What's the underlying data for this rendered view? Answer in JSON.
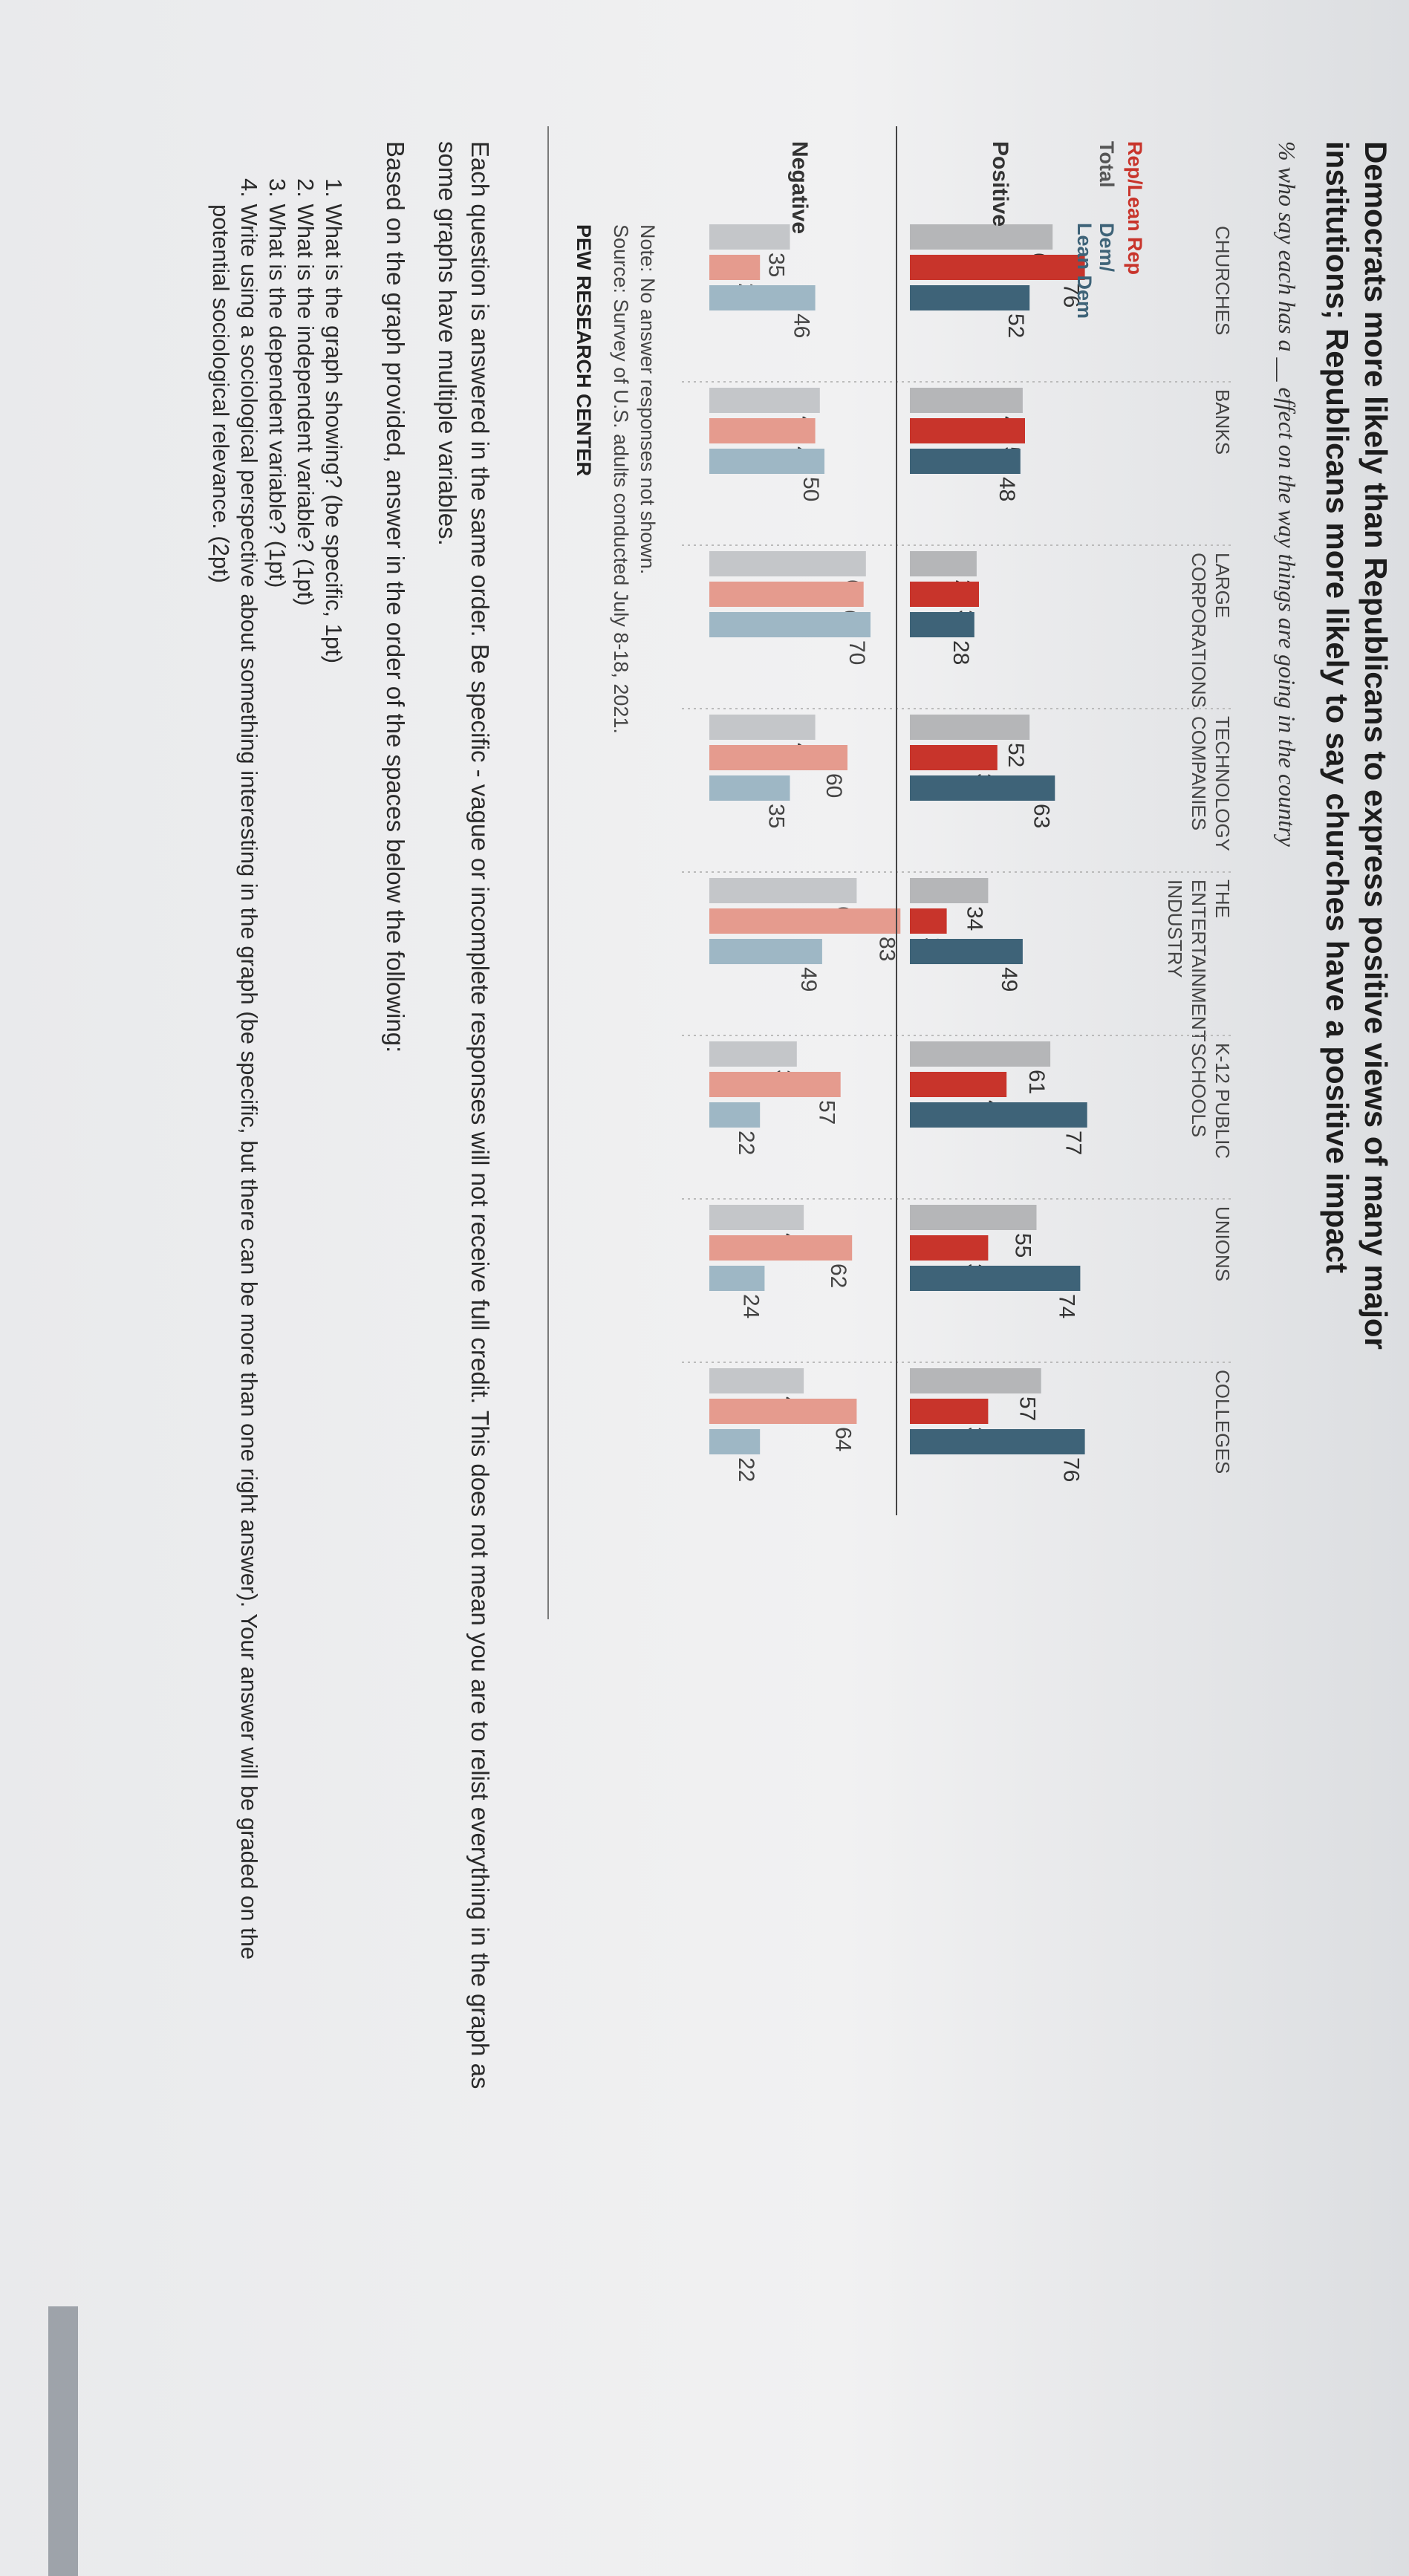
{
  "title_line1": "Democrats more likely than Republicans to express positive views of many major",
  "title_line2": "institutions; Republicans more likely to say churches have a positive impact",
  "subtitle": "% who say each has a __ effect on the way things are going in the country",
  "row_labels": {
    "positive": "Positive",
    "negative": "Negative"
  },
  "legend": {
    "rep": "Rep/Lean Rep",
    "total": "Total",
    "dem_line1": "Dem/",
    "dem_line2": "Lean Dem"
  },
  "chart_data": {
    "type": "bar",
    "categories": [
      "CHURCHES",
      "BANKS",
      "LARGE CORPORATIONS",
      "TECHNOLOGY COMPANIES",
      "THE ENTERTAINMENT INDUSTRY",
      "K-12 PUBLIC SCHOOLS",
      "UNIONS",
      "COLLEGES"
    ],
    "category_lines": [
      [
        "CHURCHES"
      ],
      [
        "BANKS"
      ],
      [
        "LARGE",
        "CORPORATIONS"
      ],
      [
        "TECHNOLOGY",
        "COMPANIES"
      ],
      [
        "THE",
        "ENTERTAINMENT",
        "INDUSTRY"
      ],
      [
        "K-12 PUBLIC",
        "SCHOOLS"
      ],
      [
        "UNIONS"
      ],
      [
        "COLLEGES"
      ]
    ],
    "groups": [
      "Positive",
      "Negative"
    ],
    "series": [
      {
        "name": "Total",
        "color": "#b5b6b8",
        "negative_color": "#c4c6c9",
        "positive": [
          62,
          49,
          29,
          52,
          34,
          61,
          55,
          57
        ],
        "negative": [
          35,
          48,
          68,
          46,
          64,
          38,
          41,
          41
        ]
      },
      {
        "name": "Rep/Lean Rep",
        "color": "#c8342b",
        "negative_color": "#e59b8e",
        "positive": [
          76,
          50,
          30,
          38,
          16,
          42,
          34,
          34
        ],
        "negative": [
          22,
          46,
          67,
          60,
          83,
          57,
          62,
          64
        ]
      },
      {
        "name": "Dem/Lean Dem",
        "color": "#3e6378",
        "negative_color": "#9eb7c5",
        "positive": [
          52,
          48,
          28,
          63,
          49,
          77,
          74,
          76
        ],
        "negative": [
          46,
          50,
          70,
          35,
          49,
          22,
          24,
          22
        ]
      }
    ],
    "ylim": [
      0,
      100
    ]
  },
  "note": "Note: No answer responses not shown.",
  "source": "Source: Survey of U.S. adults conducted July 8-18, 2021.",
  "org": "PEW RESEARCH CENTER",
  "instructions": {
    "line1": "Each question is answered in the same order. Be specific - vague or incomplete responses will not receive full credit. This does not mean you are to relist everything in the graph as",
    "line2": "some graphs have multiple variables.",
    "lead": "Based on the graph provided, answer in the order of the spaces below the following:",
    "questions": [
      "1. What is the graph showing? (be specific, 1pt)",
      "2. What is the independent variable? (1pt)",
      "3. What is the dependent variable? (1pt)",
      "4. Write using a sociological perspective about something interesting in the graph (be specific, but there can be more than one right answer). Your answer will be graded on the"
    ],
    "q4_cont": "potential sociological relevance. (2pt)"
  },
  "colors": {
    "text": "#222222",
    "footer_bar": "#9ea3aa"
  }
}
